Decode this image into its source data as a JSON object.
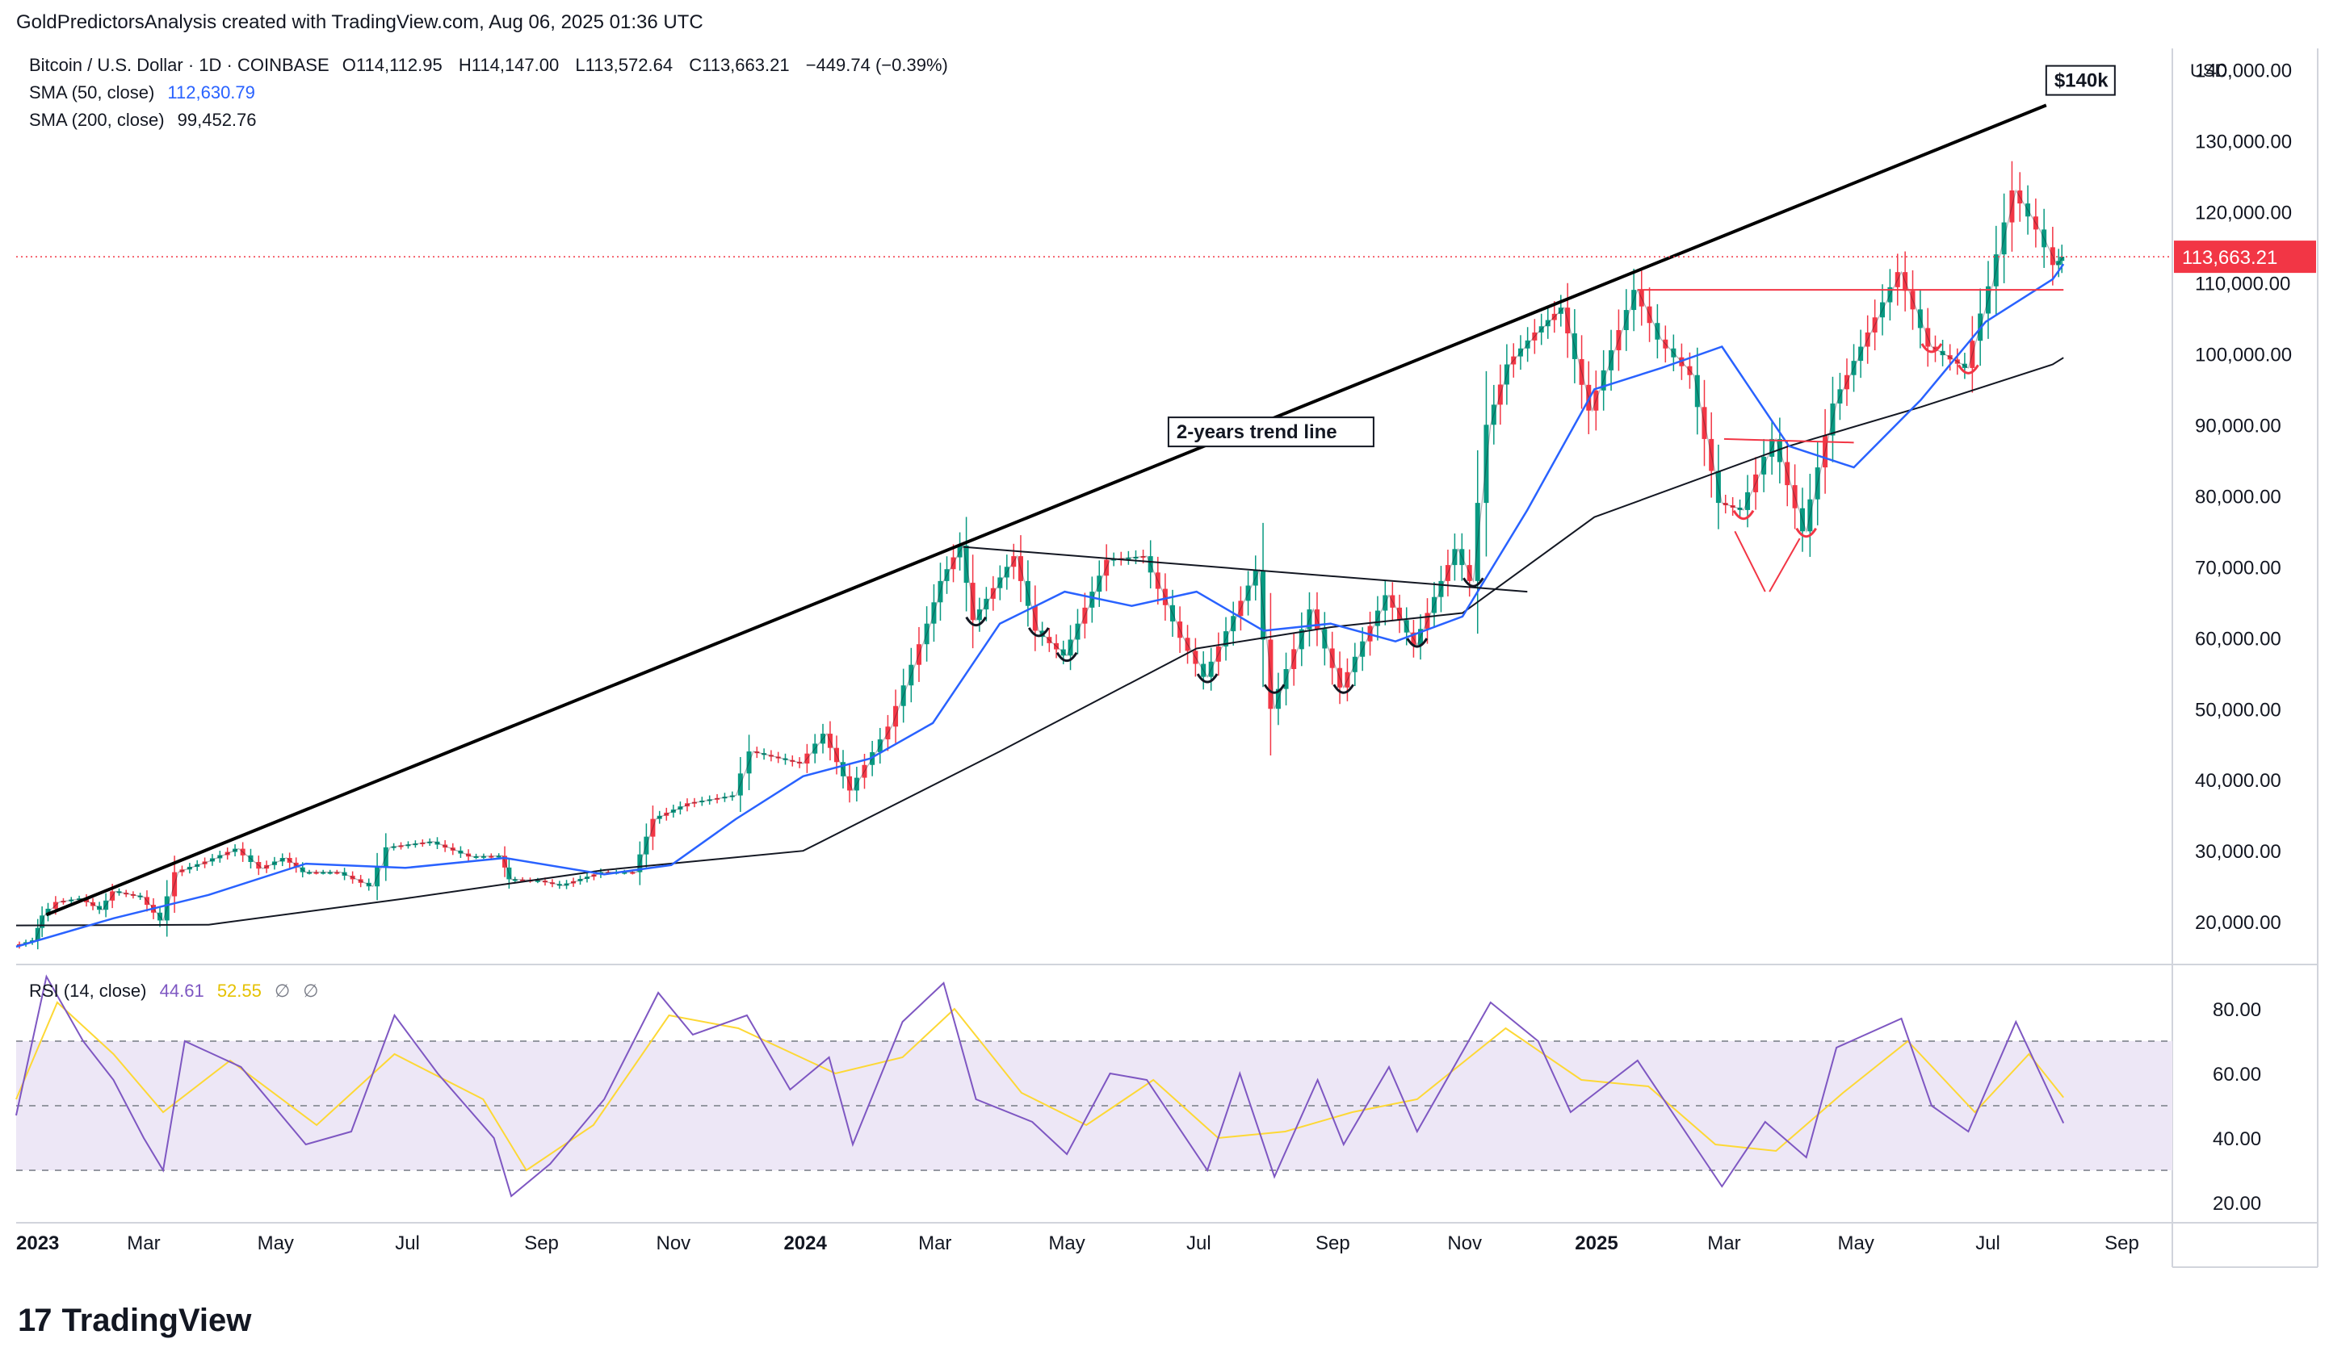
{
  "header": {
    "note": "GoldPredictorsAnalysis created with TradingView.com, Aug 06, 2025 01:36 UTC"
  },
  "legend": {
    "symbol": "Bitcoin / U.S. Dollar · 1D · COINBASE",
    "open": "O114,112.95",
    "high": "H114,147.00",
    "low": "L113,572.64",
    "close": "C113,663.21",
    "change": "−449.74 (−0.39%)",
    "sma50_label": "SMA (50, close)",
    "sma50_value": "112,630.79",
    "sma200_label": "SMA (200, close)",
    "sma200_value": "99,452.76",
    "rsi_label": "RSI (14, close)",
    "rsi_value": "44.61",
    "rsi_ma_value": "52.55",
    "rsi_extra1": "∅",
    "rsi_extra2": "∅"
  },
  "price_axis": {
    "currency": "USD",
    "ticks": [
      "140,000.00",
      "130,000.00",
      "120,000.00",
      "110,000.00",
      "100,000.00",
      "90,000.00",
      "80,000.00",
      "70,000.00",
      "60,000.00",
      "50,000.00",
      "40,000.00",
      "30,000.00",
      "20,000.00"
    ],
    "last_price_label": "113,663.21"
  },
  "rsi_axis": {
    "ticks": [
      "80.00",
      "60.00",
      "40.00",
      "20.00"
    ]
  },
  "time_axis": {
    "ticks": [
      "2023",
      "Mar",
      "May",
      "Jul",
      "Sep",
      "Nov",
      "2024",
      "Mar",
      "May",
      "Jul",
      "Sep",
      "Nov",
      "2025",
      "Mar",
      "May",
      "Jul",
      "Sep"
    ]
  },
  "annotations": {
    "trend_label": "2-years trend line",
    "target_label": "$140k"
  },
  "colors": {
    "candle_up": "#089981",
    "candle_down": "#f23645",
    "sma50": "#2962ff",
    "sma200": "#131722",
    "rsi_line": "#7e57c2",
    "rsi_ma": "#fdd835",
    "rsi_band": "#ede7f6",
    "red_annotation": "#f23645",
    "last_price_bg": "#f23645"
  },
  "chart_data": {
    "type": "line",
    "title": "Bitcoin / U.S. Dollar · 1D · COINBASE",
    "x_range": [
      "2023-01-01",
      "2025-09-15"
    ],
    "ylim": [
      14000,
      143000
    ],
    "y_scale": "linear",
    "series": [
      {
        "name": "Bitcoin / U.S. Dollar",
        "points": [
          [
            "2023-01-01",
            16600
          ],
          [
            "2023-01-10",
            17400
          ],
          [
            "2023-01-14",
            20900
          ],
          [
            "2023-01-21",
            22800
          ],
          [
            "2023-02-01",
            23300
          ],
          [
            "2023-02-10",
            21700
          ],
          [
            "2023-02-16",
            24300
          ],
          [
            "2023-03-01",
            23500
          ],
          [
            "2023-03-10",
            20200
          ],
          [
            "2023-03-17",
            27000
          ],
          [
            "2023-03-31",
            28500
          ],
          [
            "2023-04-14",
            30300
          ],
          [
            "2023-04-25",
            27500
          ],
          [
            "2023-05-06",
            29000
          ],
          [
            "2023-05-15",
            27000
          ],
          [
            "2023-05-31",
            27000
          ],
          [
            "2023-06-15",
            25000
          ],
          [
            "2023-06-23",
            30500
          ],
          [
            "2023-07-13",
            31300
          ],
          [
            "2023-07-31",
            29200
          ],
          [
            "2023-08-14",
            29300
          ],
          [
            "2023-08-18",
            26000
          ],
          [
            "2023-09-01",
            25800
          ],
          [
            "2023-09-11",
            25100
          ],
          [
            "2023-09-30",
            27000
          ],
          [
            "2023-10-15",
            27000
          ],
          [
            "2023-10-24",
            34500
          ],
          [
            "2023-11-09",
            36700
          ],
          [
            "2023-11-30",
            37800
          ],
          [
            "2023-12-08",
            44000
          ],
          [
            "2023-12-31",
            42300
          ],
          [
            "2024-01-11",
            46500
          ],
          [
            "2024-01-23",
            38500
          ],
          [
            "2024-02-10",
            47500
          ],
          [
            "2024-02-28",
            62000
          ],
          [
            "2024-03-05",
            68000
          ],
          [
            "2024-03-14",
            73000
          ],
          [
            "2024-03-20",
            62500
          ],
          [
            "2024-04-08",
            71500
          ],
          [
            "2024-04-18",
            61000
          ],
          [
            "2024-05-01",
            57500
          ],
          [
            "2024-05-21",
            71000
          ],
          [
            "2024-06-07",
            71500
          ],
          [
            "2024-06-24",
            60000
          ],
          [
            "2024-07-05",
            54500
          ],
          [
            "2024-07-29",
            69500
          ],
          [
            "2024-08-05",
            50000
          ],
          [
            "2024-08-23",
            64000
          ],
          [
            "2024-09-06",
            53000
          ],
          [
            "2024-09-27",
            66000
          ],
          [
            "2024-10-10",
            59000
          ],
          [
            "2024-10-29",
            72500
          ],
          [
            "2024-11-05",
            68000
          ],
          [
            "2024-11-13",
            90000
          ],
          [
            "2024-11-22",
            98500
          ],
          [
            "2024-12-05",
            103000
          ],
          [
            "2024-12-17",
            106500
          ],
          [
            "2024-12-30",
            92000
          ],
          [
            "2025-01-20",
            109000
          ],
          [
            "2025-01-31",
            102000
          ],
          [
            "2025-02-15",
            97000
          ],
          [
            "2025-02-28",
            79000
          ],
          [
            "2025-03-10",
            78000
          ],
          [
            "2025-03-25",
            88000
          ],
          [
            "2025-04-08",
            75000
          ],
          [
            "2025-04-22",
            93000
          ],
          [
            "2025-05-08",
            103000
          ],
          [
            "2025-05-22",
            111500
          ],
          [
            "2025-06-05",
            101000
          ],
          [
            "2025-06-22",
            98000
          ],
          [
            "2025-07-03",
            109500
          ],
          [
            "2025-07-14",
            123000
          ],
          [
            "2025-07-25",
            117500
          ],
          [
            "2025-08-02",
            112500
          ],
          [
            "2025-08-05",
            113663
          ]
        ]
      },
      {
        "name": "SMA (50, close)",
        "points": [
          [
            "2023-01-01",
            16500
          ],
          [
            "2023-02-15",
            20500
          ],
          [
            "2023-03-31",
            23800
          ],
          [
            "2023-05-15",
            28200
          ],
          [
            "2023-06-30",
            27600
          ],
          [
            "2023-08-15",
            29000
          ],
          [
            "2023-09-30",
            26700
          ],
          [
            "2023-10-31",
            28000
          ],
          [
            "2023-11-30",
            34500
          ],
          [
            "2023-12-31",
            40500
          ],
          [
            "2024-01-31",
            43000
          ],
          [
            "2024-02-29",
            48000
          ],
          [
            "2024-03-31",
            62000
          ],
          [
            "2024-04-30",
            66500
          ],
          [
            "2024-05-31",
            64500
          ],
          [
            "2024-06-30",
            66500
          ],
          [
            "2024-07-31",
            61000
          ],
          [
            "2024-08-31",
            62000
          ],
          [
            "2024-09-30",
            59500
          ],
          [
            "2024-10-31",
            63000
          ],
          [
            "2024-11-30",
            78000
          ],
          [
            "2024-12-31",
            95000
          ],
          [
            "2025-01-31",
            98000
          ],
          [
            "2025-02-28",
            101000
          ],
          [
            "2025-03-31",
            87000
          ],
          [
            "2025-04-30",
            84000
          ],
          [
            "2025-05-31",
            93500
          ],
          [
            "2025-06-30",
            104500
          ],
          [
            "2025-07-31",
            110500
          ],
          [
            "2025-08-05",
            112630
          ]
        ]
      },
      {
        "name": "SMA (200, close)",
        "points": [
          [
            "2023-01-01",
            19500
          ],
          [
            "2023-03-31",
            19600
          ],
          [
            "2023-06-30",
            23300
          ],
          [
            "2023-09-30",
            27300
          ],
          [
            "2023-12-31",
            30000
          ],
          [
            "2024-03-31",
            44000
          ],
          [
            "2024-06-30",
            58500
          ],
          [
            "2024-08-31",
            61500
          ],
          [
            "2024-10-31",
            63500
          ],
          [
            "2024-12-31",
            77000
          ],
          [
            "2025-03-31",
            87000
          ],
          [
            "2025-05-31",
            92500
          ],
          [
            "2025-07-31",
            98500
          ],
          [
            "2025-08-05",
            99452
          ]
        ]
      },
      {
        "name": "2-years trend line",
        "points": [
          [
            "2023-01-15",
            21000
          ],
          [
            "2024-03-14",
            73000
          ],
          [
            "2025-07-28",
            135000
          ]
        ]
      },
      {
        "name": "resistance",
        "points": [
          [
            "2025-01-20",
            109000
          ],
          [
            "2025-08-05",
            109000
          ]
        ]
      },
      {
        "name": "neckline",
        "points": [
          [
            "2024-03-14",
            72800
          ],
          [
            "2024-11-30",
            66500
          ]
        ]
      },
      {
        "name": "support",
        "points": [
          [
            "2025-03-01",
            88000
          ],
          [
            "2025-04-30",
            87500
          ]
        ]
      },
      {
        "name": "RSI (14, close)",
        "points": [
          [
            "2023-01-01",
            47
          ],
          [
            "2023-01-15",
            90
          ],
          [
            "2023-02-01",
            70
          ],
          [
            "2023-02-15",
            58
          ],
          [
            "2023-03-01",
            40
          ],
          [
            "2023-03-10",
            30
          ],
          [
            "2023-03-20",
            70
          ],
          [
            "2023-04-15",
            62
          ],
          [
            "2023-05-15",
            38
          ],
          [
            "2023-06-05",
            42
          ],
          [
            "2023-06-25",
            78
          ],
          [
            "2023-07-15",
            60
          ],
          [
            "2023-08-10",
            40
          ],
          [
            "2023-08-18",
            22
          ],
          [
            "2023-09-05",
            32
          ],
          [
            "2023-09-30",
            52
          ],
          [
            "2023-10-25",
            85
          ],
          [
            "2023-11-10",
            72
          ],
          [
            "2023-12-05",
            78
          ],
          [
            "2023-12-25",
            55
          ],
          [
            "2024-01-12",
            65
          ],
          [
            "2024-01-23",
            38
          ],
          [
            "2024-02-15",
            76
          ],
          [
            "2024-03-05",
            88
          ],
          [
            "2024-03-20",
            52
          ],
          [
            "2024-04-15",
            45
          ],
          [
            "2024-05-01",
            35
          ],
          [
            "2024-05-21",
            60
          ],
          [
            "2024-06-07",
            58
          ],
          [
            "2024-07-05",
            30
          ],
          [
            "2024-07-20",
            60
          ],
          [
            "2024-08-05",
            28
          ],
          [
            "2024-08-25",
            58
          ],
          [
            "2024-09-06",
            38
          ],
          [
            "2024-09-27",
            62
          ],
          [
            "2024-10-10",
            42
          ],
          [
            "2024-11-13",
            82
          ],
          [
            "2024-12-05",
            70
          ],
          [
            "2024-12-20",
            48
          ],
          [
            "2025-01-20",
            64
          ],
          [
            "2025-02-15",
            38
          ],
          [
            "2025-02-28",
            25
          ],
          [
            "2025-03-20",
            45
          ],
          [
            "2025-04-08",
            34
          ],
          [
            "2025-04-22",
            68
          ],
          [
            "2025-05-22",
            77
          ],
          [
            "2025-06-05",
            50
          ],
          [
            "2025-06-22",
            42
          ],
          [
            "2025-07-14",
            76
          ],
          [
            "2025-07-28",
            56
          ],
          [
            "2025-08-05",
            44.61
          ]
        ]
      },
      {
        "name": "RSI MA",
        "points": [
          [
            "2023-01-01",
            52
          ],
          [
            "2023-01-20",
            82
          ],
          [
            "2023-02-15",
            66
          ],
          [
            "2023-03-10",
            48
          ],
          [
            "2023-04-10",
            64
          ],
          [
            "2023-05-20",
            44
          ],
          [
            "2023-06-25",
            66
          ],
          [
            "2023-08-05",
            52
          ],
          [
            "2023-08-25",
            30
          ],
          [
            "2023-09-25",
            44
          ],
          [
            "2023-10-30",
            78
          ],
          [
            "2023-12-01",
            74
          ],
          [
            "2024-01-15",
            60
          ],
          [
            "2024-02-15",
            65
          ],
          [
            "2024-03-10",
            80
          ],
          [
            "2024-04-10",
            54
          ],
          [
            "2024-05-10",
            44
          ],
          [
            "2024-06-10",
            58
          ],
          [
            "2024-07-10",
            40
          ],
          [
            "2024-08-10",
            42
          ],
          [
            "2024-09-10",
            48
          ],
          [
            "2024-10-10",
            52
          ],
          [
            "2024-11-20",
            74
          ],
          [
            "2024-12-25",
            58
          ],
          [
            "2025-01-25",
            56
          ],
          [
            "2025-02-25",
            38
          ],
          [
            "2025-03-25",
            36
          ],
          [
            "2025-04-25",
            54
          ],
          [
            "2025-05-25",
            70
          ],
          [
            "2025-06-25",
            48
          ],
          [
            "2025-07-20",
            66
          ],
          [
            "2025-08-05",
            52.55
          ]
        ]
      }
    ]
  }
}
